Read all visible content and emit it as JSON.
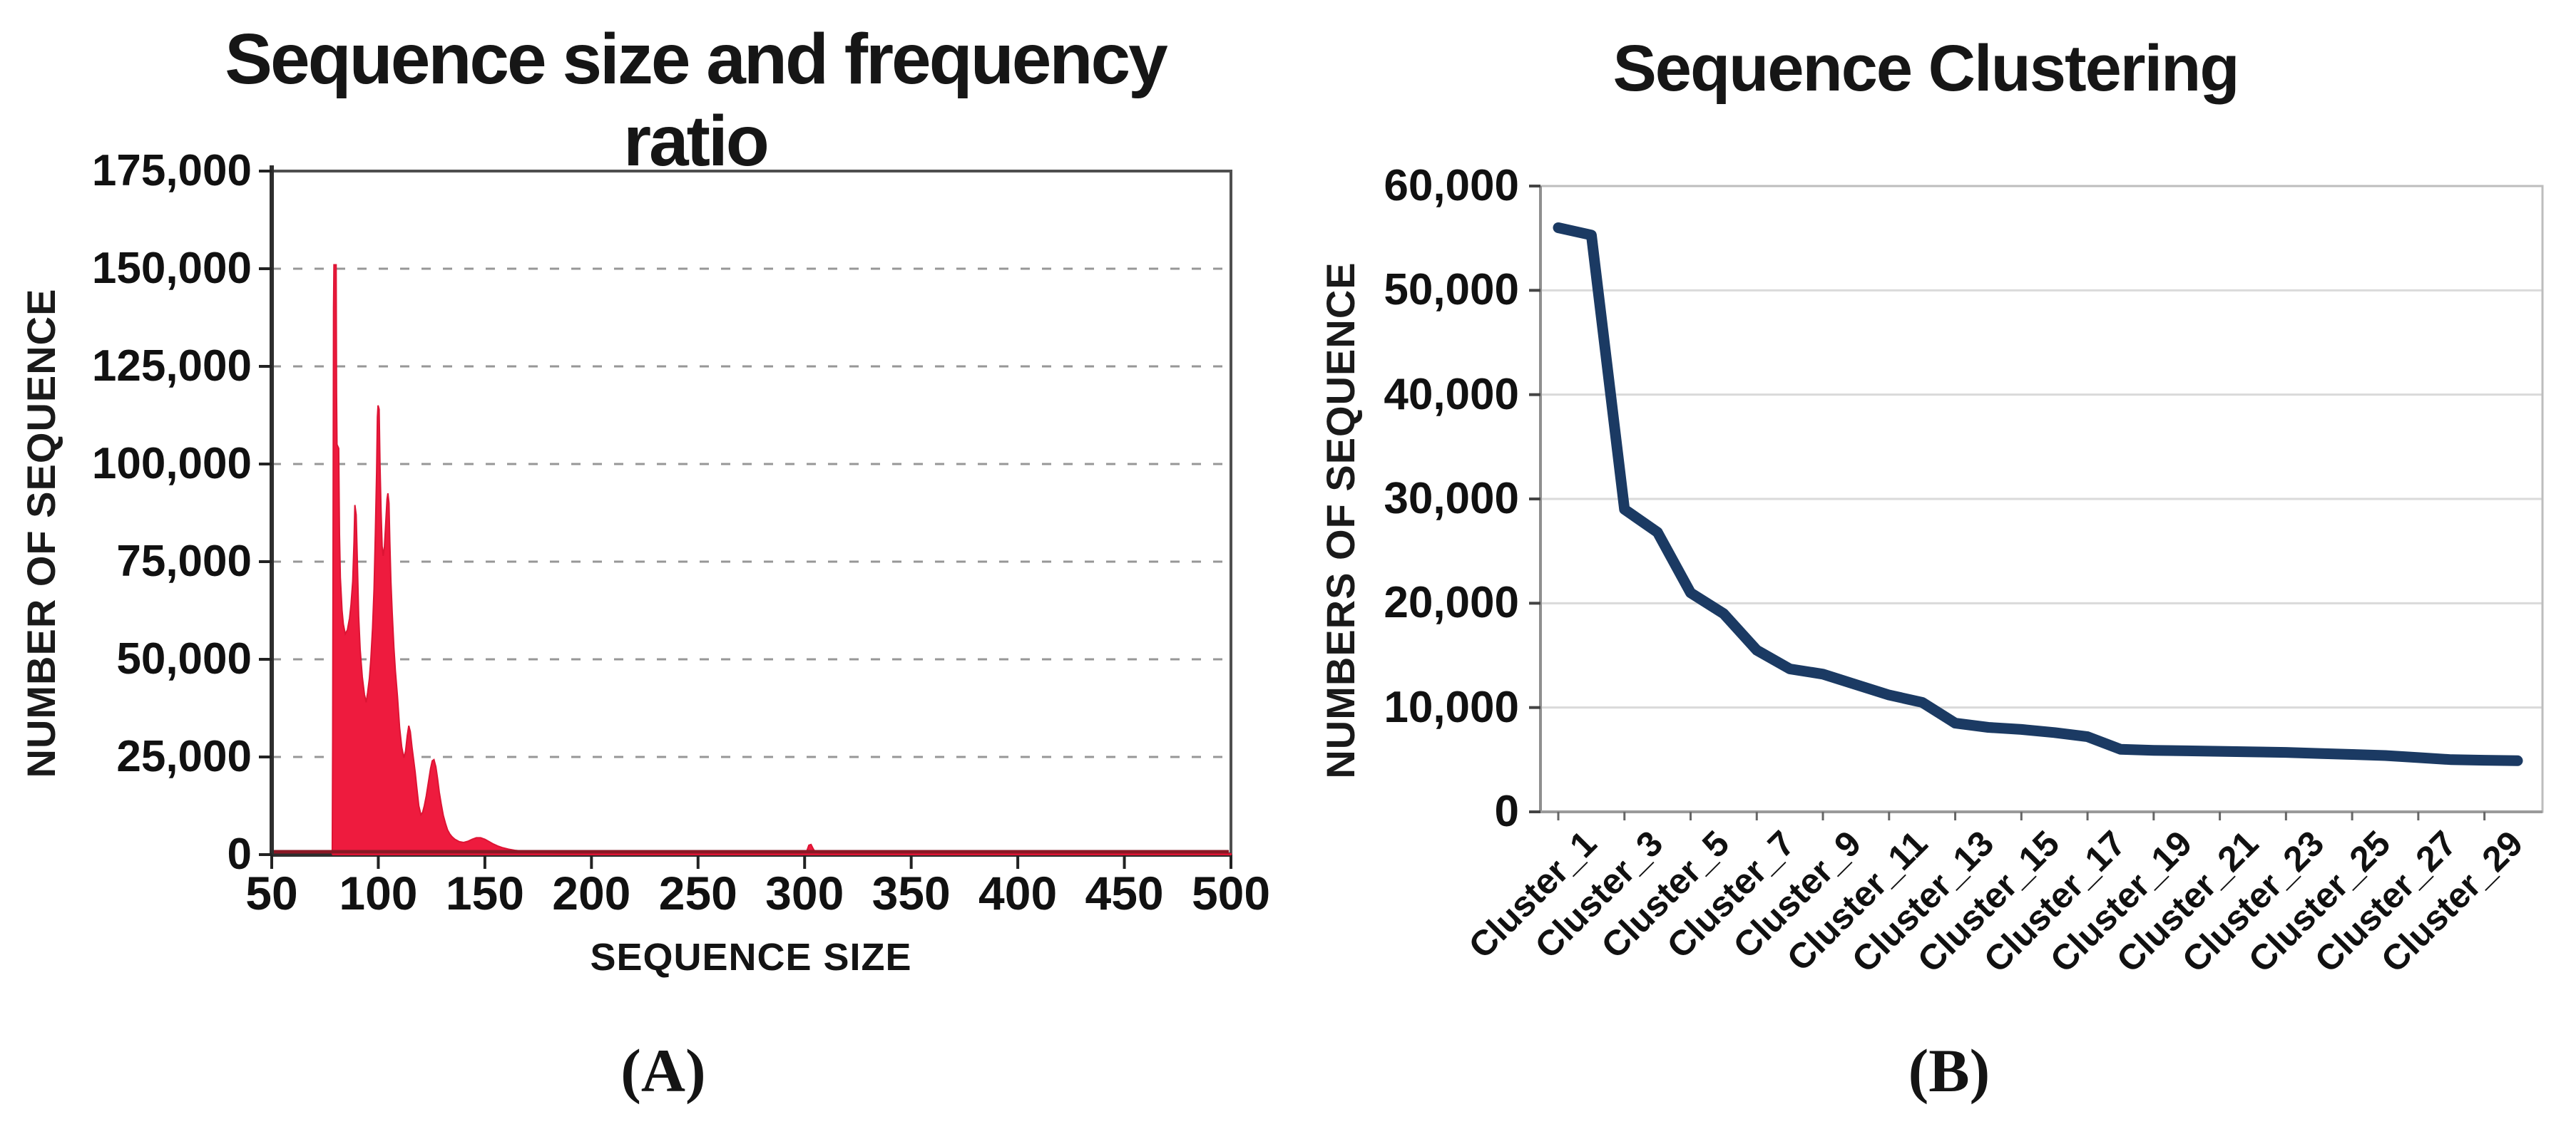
{
  "figure": {
    "caption_a": "(A)",
    "caption_b": "(B)"
  },
  "chart_data": [
    {
      "id": "size-frequency-histogram",
      "type": "area",
      "title": "Sequence size and frequency ratio",
      "xlabel": "SEQUENCE SIZE",
      "ylabel": "NUMBER  OF SEQUENCE",
      "xlim": [
        50,
        500
      ],
      "ylim": [
        0,
        175000
      ],
      "grid": "dashed",
      "legend": "none",
      "x_ticks": [
        50,
        100,
        150,
        200,
        250,
        300,
        350,
        400,
        450,
        500
      ],
      "y_ticks": [
        0,
        25000,
        50000,
        75000,
        100000,
        125000,
        150000,
        175000
      ],
      "y_tick_labels": [
        "0",
        "25,000",
        "50,000",
        "75,000",
        "100,000",
        "125,000",
        "150,000",
        "175,000"
      ],
      "series_color": "#EE1B3E",
      "baseline_color": "#8A1825",
      "points": [
        [
          78.4,
          0
        ],
        [
          78.6,
          30000
        ],
        [
          79.0,
          140000
        ],
        [
          79.2,
          151000
        ],
        [
          80.2,
          151000
        ],
        [
          80.4,
          118000
        ],
        [
          80.6,
          105000
        ],
        [
          81.4,
          104000
        ],
        [
          81.8,
          82000
        ],
        [
          82.2,
          71000
        ],
        [
          83.0,
          62500
        ],
        [
          83.6,
          59000
        ],
        [
          84.5,
          56500
        ],
        [
          85.5,
          57500
        ],
        [
          86.5,
          60500
        ],
        [
          87.2,
          64000
        ],
        [
          88.0,
          70000
        ],
        [
          88.6,
          80000
        ],
        [
          89.0,
          89500
        ],
        [
          89.6,
          87000
        ],
        [
          90.2,
          74000
        ],
        [
          90.8,
          61000
        ],
        [
          91.5,
          52500
        ],
        [
          92.5,
          45500
        ],
        [
          93.5,
          41000
        ],
        [
          94.3,
          39000
        ],
        [
          95.0,
          41500
        ],
        [
          95.8,
          45000
        ],
        [
          96.5,
          50000
        ],
        [
          97.3,
          58000
        ],
        [
          98.0,
          68000
        ],
        [
          98.6,
          82000
        ],
        [
          99.2,
          98000
        ],
        [
          99.6,
          112000
        ],
        [
          99.9,
          115000
        ],
        [
          100.4,
          114000
        ],
        [
          100.8,
          100000
        ],
        [
          101.3,
          88000
        ],
        [
          101.8,
          79000
        ],
        [
          102.3,
          76500
        ],
        [
          102.9,
          79000
        ],
        [
          103.5,
          85000
        ],
        [
          104.1,
          91000
        ],
        [
          104.5,
          92500
        ],
        [
          105.0,
          90000
        ],
        [
          105.4,
          80000
        ],
        [
          105.9,
          70000
        ],
        [
          106.5,
          62000
        ],
        [
          107.3,
          53000
        ],
        [
          108.0,
          47000
        ],
        [
          109.0,
          40500
        ],
        [
          110.0,
          32500
        ],
        [
          111.0,
          27500
        ],
        [
          112.0,
          24800
        ],
        [
          112.8,
          26500
        ],
        [
          113.6,
          30500
        ],
        [
          114.3,
          33000
        ],
        [
          115.0,
          31500
        ],
        [
          115.8,
          27500
        ],
        [
          116.5,
          24500
        ],
        [
          117.3,
          21000
        ],
        [
          118.0,
          17500
        ],
        [
          119.0,
          12500
        ],
        [
          120.0,
          10200
        ],
        [
          120.8,
          10800
        ],
        [
          121.6,
          12500
        ],
        [
          122.5,
          15000
        ],
        [
          123.5,
          18500
        ],
        [
          124.5,
          22000
        ],
        [
          125.3,
          24000
        ],
        [
          126.1,
          24300
        ],
        [
          127.0,
          22500
        ],
        [
          127.8,
          19500
        ],
        [
          128.6,
          16000
        ],
        [
          129.5,
          13000
        ],
        [
          130.5,
          10000
        ],
        [
          131.5,
          8000
        ],
        [
          132.5,
          6300
        ],
        [
          133.5,
          5300
        ],
        [
          134.5,
          4600
        ],
        [
          136.0,
          3900
        ],
        [
          138.0,
          3300
        ],
        [
          140.0,
          3100
        ],
        [
          142.0,
          3400
        ],
        [
          144.0,
          3900
        ],
        [
          146.0,
          4300
        ],
        [
          148.0,
          4300
        ],
        [
          150.0,
          3900
        ],
        [
          152.0,
          3300
        ],
        [
          154.0,
          2700
        ],
        [
          156.0,
          2200
        ],
        [
          158.0,
          1800
        ],
        [
          161.0,
          1400
        ],
        [
          164.0,
          1100
        ],
        [
          168.0,
          850
        ],
        [
          172.0,
          650
        ],
        [
          177.0,
          500
        ],
        [
          183.0,
          400
        ],
        [
          190.0,
          330
        ],
        [
          200.0,
          280
        ],
        [
          215.0,
          240
        ],
        [
          235.0,
          220
        ],
        [
          255.0,
          210
        ],
        [
          275.0,
          210
        ],
        [
          292.0,
          230
        ],
        [
          299.0,
          400
        ],
        [
          301.0,
          900
        ],
        [
          302.0,
          2400
        ],
        [
          303.0,
          2600
        ],
        [
          304.0,
          1500
        ],
        [
          305.0,
          600
        ],
        [
          308.0,
          300
        ],
        [
          315.0,
          240
        ],
        [
          330.0,
          220
        ],
        [
          350.0,
          210
        ],
        [
          375.0,
          210
        ],
        [
          400.0,
          210
        ],
        [
          430.0,
          210
        ],
        [
          460.0,
          210
        ],
        [
          485.0,
          210
        ],
        [
          500.0,
          210
        ]
      ]
    },
    {
      "id": "sequence-clustering-line",
      "type": "line",
      "title": "Sequence Clustering",
      "xlabel": "",
      "ylabel": "NUMBERS OF SEQUENCE",
      "ylim": [
        0,
        60000
      ],
      "grid": "solid",
      "legend": "none",
      "y_ticks": [
        0,
        10000,
        20000,
        30000,
        40000,
        50000,
        60000
      ],
      "y_tick_labels": [
        "0",
        "10,000",
        "20,000",
        "30,000",
        "40,000",
        "50,000",
        "60,000"
      ],
      "x_labels": [
        "Cluster_1",
        "Cluster_3",
        "Cluster_5",
        "Cluster_7",
        "Cluster_9",
        "Cluster_11",
        "Cluster_13",
        "Cluster_15",
        "Cluster_17",
        "Cluster_19",
        "Cluster_21",
        "Cluster_23",
        "Cluster_25",
        "Cluster_27",
        "Cluster_29"
      ],
      "label_step": 2,
      "line_color": "#1B3A63",
      "values": [
        56000,
        55300,
        29000,
        26800,
        21000,
        19000,
        15500,
        13700,
        13200,
        12200,
        11200,
        10500,
        8500,
        8100,
        7900,
        7600,
        7200,
        6000,
        5900,
        5850,
        5800,
        5750,
        5700,
        5600,
        5500,
        5400,
        5200,
        5000,
        4950,
        4900
      ]
    }
  ]
}
